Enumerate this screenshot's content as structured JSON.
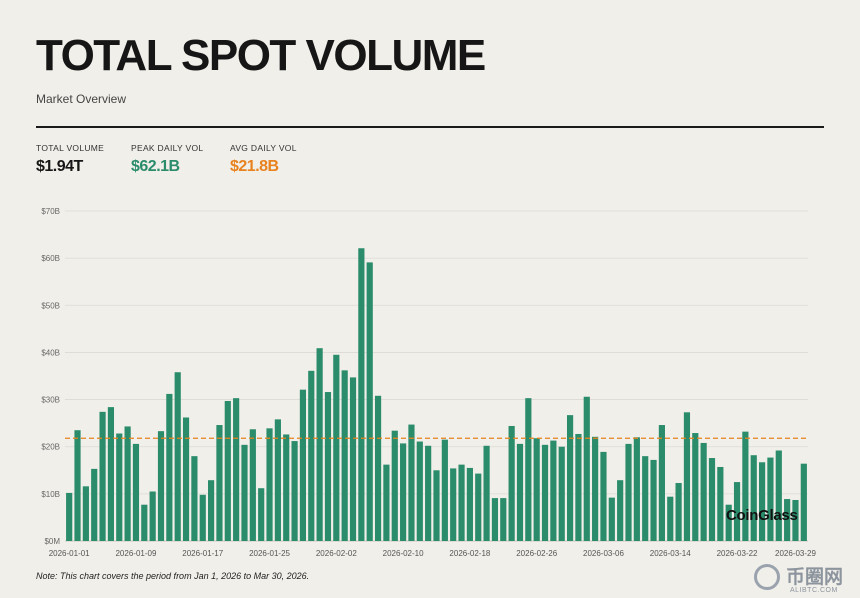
{
  "header": {
    "title": "TOTAL SPOT VOLUME",
    "subtitle": "Market Overview"
  },
  "stats": [
    {
      "label": "TOTAL VOLUME",
      "value": "$1.94T",
      "color": "#161616"
    },
    {
      "label": "PEAK DAILY VOL",
      "value": "$62.1B",
      "color": "#2b8c6c"
    },
    {
      "label": "AVG DAILY VOL",
      "value": "$21.8B",
      "color": "#e8821e"
    }
  ],
  "note": "Note: This chart covers the period from Jan 1, 2026 to Mar 30, 2026.",
  "watermark": "CoinGlass",
  "logo": {
    "text": "币圈网",
    "url": "ALIBTC.COM"
  },
  "colors": {
    "bar": "#2b8c6c",
    "avg_line": "#e8821e",
    "grid": "#dcdad4"
  },
  "chart_data": {
    "type": "bar",
    "start_date": "2026-01-01",
    "end_date": "2026-03-30",
    "x_tick_labels": [
      "2026-01-01",
      "2026-01-09",
      "2026-01-17",
      "2026-01-25",
      "2026-02-02",
      "2026-02-10",
      "2026-02-18",
      "2026-02-26",
      "2026-03-06",
      "2026-03-14",
      "2026-03-22",
      "2026-03-29"
    ],
    "y_tick_labels": [
      "$0M",
      "$10B",
      "$20B",
      "$30B",
      "$40B",
      "$50B",
      "$60B",
      "$70B"
    ],
    "ylim": [
      0,
      70
    ],
    "unit": "B",
    "average": 21.8,
    "grid": true,
    "values": [
      10.2,
      23.5,
      11.6,
      15.3,
      27.4,
      28.4,
      22.8,
      24.3,
      20.6,
      7.7,
      10.5,
      23.3,
      31.2,
      35.8,
      26.2,
      18.0,
      9.8,
      12.9,
      24.6,
      29.7,
      30.3,
      20.4,
      23.7,
      11.2,
      23.9,
      25.8,
      22.6,
      21.2,
      32.1,
      36.1,
      40.9,
      31.6,
      39.5,
      36.2,
      34.7,
      62.1,
      59.1,
      30.8,
      16.2,
      23.4,
      20.7,
      24.7,
      21.1,
      20.2,
      15.0,
      21.5,
      15.4,
      16.2,
      15.5,
      14.3,
      20.2,
      9.1,
      9.1,
      24.4,
      20.6,
      30.3,
      21.8,
      20.4,
      21.3,
      20.0,
      26.7,
      22.7,
      30.6,
      22.1,
      18.9,
      9.2,
      12.9,
      20.6,
      22.0,
      18.0,
      17.2,
      24.6,
      9.4,
      12.3,
      27.3,
      22.9,
      20.8,
      17.6,
      15.7,
      7.7,
      12.5,
      23.2,
      18.2,
      16.7,
      17.7,
      19.2,
      8.9,
      8.7,
      16.4
    ]
  }
}
